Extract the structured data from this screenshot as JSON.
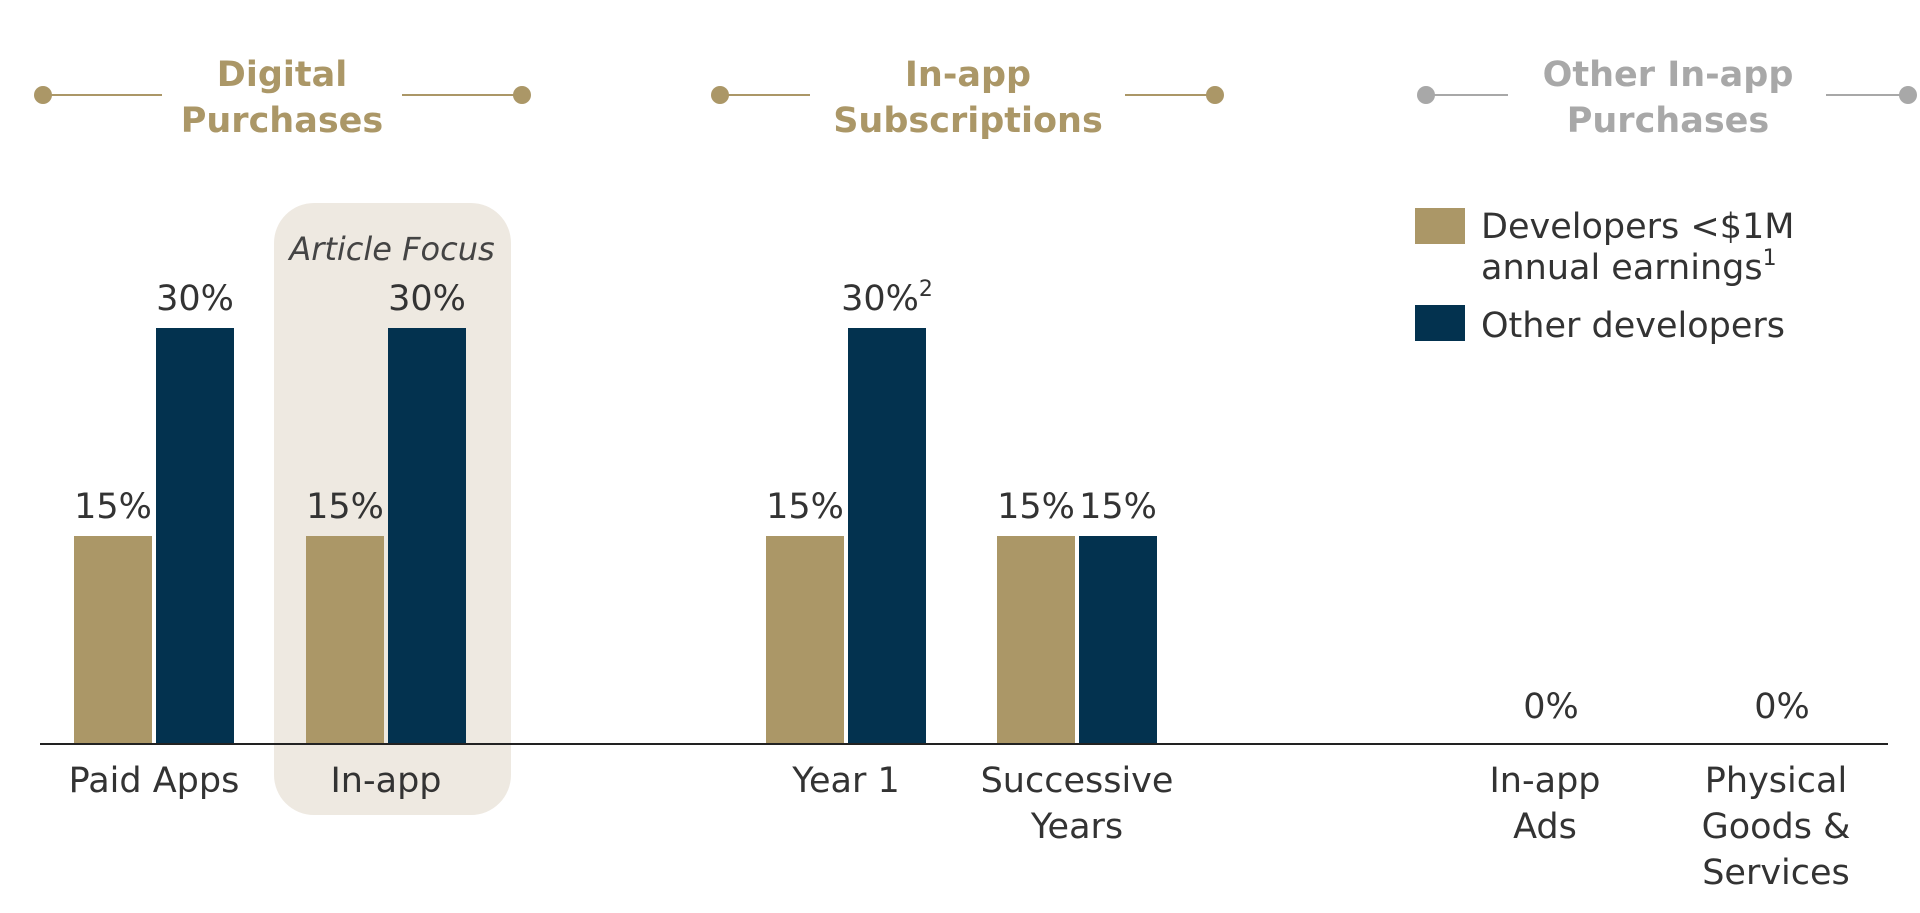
{
  "colors": {
    "small_dev": "#ab9767",
    "other_dev": "#03324f",
    "highlight": "#eee9e1",
    "title_gold": "#ab9767",
    "title_gray": "#a8a8a8",
    "axis": "#222222"
  },
  "chart_data": {
    "type": "bar",
    "ylim": [
      0,
      30
    ],
    "groups": [
      {
        "title_lines": [
          "Digital",
          "Purchases"
        ],
        "style": "gold"
      },
      {
        "title_lines": [
          "In-app",
          "Subscriptions"
        ],
        "style": "gold"
      },
      {
        "title_lines": [
          "Other In-app",
          "Purchases"
        ],
        "style": "gray"
      }
    ],
    "categories": [
      {
        "label_lines": [
          "Paid Apps"
        ],
        "group": 0
      },
      {
        "label_lines": [
          "In-app"
        ],
        "group": 0,
        "highlight_label": "Article Focus"
      },
      {
        "label_lines": [
          "Year 1"
        ],
        "group": 1
      },
      {
        "label_lines": [
          "Successive",
          "Years"
        ],
        "group": 1
      },
      {
        "label_lines": [
          "In-app",
          "Ads"
        ],
        "group": 2
      },
      {
        "label_lines": [
          "Physical",
          "Goods &",
          "Services"
        ],
        "group": 2
      }
    ],
    "series": [
      {
        "name": "Developers <$1M annual earnings",
        "name_lines": [
          "Developers <$1M",
          "annual earnings"
        ],
        "name_superscript": "1",
        "values": [
          15,
          15,
          15,
          15,
          null,
          null
        ]
      },
      {
        "name": "Other developers",
        "name_lines": [
          "Other developers"
        ],
        "values": [
          30,
          30,
          30,
          15,
          null,
          null
        ]
      }
    ],
    "value_labels": [
      [
        "15%",
        "30%"
      ],
      [
        "15%",
        "30%"
      ],
      [
        "15%",
        "30%"
      ],
      [
        "15%",
        "15%"
      ],
      [
        "0%"
      ],
      [
        "0%"
      ]
    ],
    "value_label_superscripts": [
      [
        "",
        ""
      ],
      [
        "",
        ""
      ],
      [
        "",
        "2"
      ],
      [
        "",
        ""
      ],
      [
        ""
      ],
      [
        ""
      ]
    ],
    "legend_position": "top-right",
    "grid": false
  }
}
